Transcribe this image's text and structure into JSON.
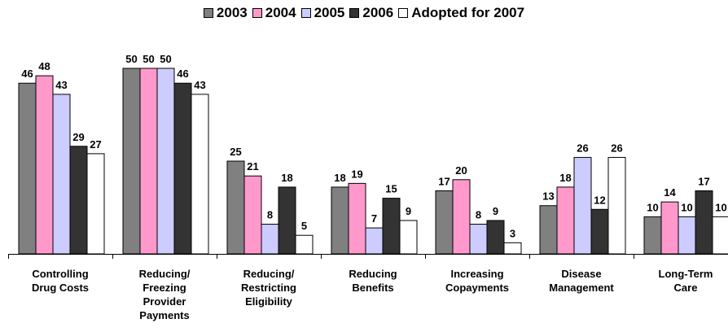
{
  "chart_data": {
    "type": "bar",
    "title": "",
    "xlabel": "",
    "ylabel": "",
    "ylim": [
      0,
      50
    ],
    "grid": false,
    "legend_position": "top-center",
    "categories": [
      [
        "Controlling",
        "Drug Costs"
      ],
      [
        "Reducing/",
        "Freezing",
        "Provider",
        "Payments"
      ],
      [
        "Reducing/",
        "Restricting",
        "Eligibility"
      ],
      [
        "Reducing",
        "Benefits"
      ],
      [
        "Increasing",
        "Copayments"
      ],
      [
        "Disease",
        "Management"
      ],
      [
        "Long-Term",
        "Care"
      ]
    ],
    "series": [
      {
        "name": "2003",
        "color": "#808080",
        "values": [
          46,
          50,
          25,
          18,
          17,
          13,
          10
        ]
      },
      {
        "name": "2004",
        "color": "#ff99cc",
        "values": [
          48,
          50,
          21,
          19,
          20,
          18,
          14
        ]
      },
      {
        "name": "2005",
        "color": "#ccccff",
        "values": [
          43,
          50,
          8,
          7,
          8,
          26,
          10
        ]
      },
      {
        "name": "2006",
        "color": "#333333",
        "values": [
          29,
          46,
          18,
          15,
          9,
          12,
          17
        ]
      },
      {
        "name": "Adopted for 2007",
        "color": "#ffffff",
        "values": [
          27,
          43,
          5,
          9,
          3,
          26,
          10
        ]
      }
    ]
  }
}
